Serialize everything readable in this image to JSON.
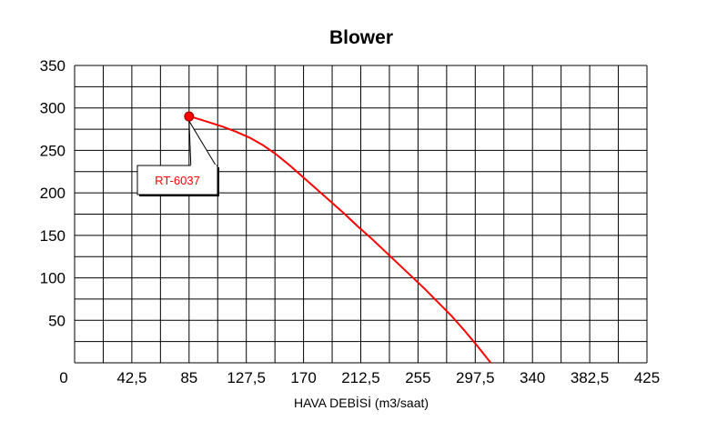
{
  "chart_data": {
    "type": "line",
    "title": "Blower",
    "xlabel": "HAVA DEBİSİ (m3/saat)",
    "ylabel": "",
    "xlim": [
      0,
      425
    ],
    "ylim": [
      0,
      350
    ],
    "x_ticks": [
      {
        "value": 0,
        "label": "0"
      },
      {
        "value": 42.5,
        "label": "42,5"
      },
      {
        "value": 85,
        "label": "85"
      },
      {
        "value": 127.5,
        "label": "127,5"
      },
      {
        "value": 170,
        "label": "170"
      },
      {
        "value": 212.5,
        "label": "212,5"
      },
      {
        "value": 255,
        "label": "255"
      },
      {
        "value": 297.5,
        "label": "297,5"
      },
      {
        "value": 340,
        "label": "340"
      },
      {
        "value": 382.5,
        "label": "382,5"
      },
      {
        "value": 425,
        "label": "425"
      }
    ],
    "y_ticks": [
      {
        "value": 50,
        "label": "50"
      },
      {
        "value": 100,
        "label": "100"
      },
      {
        "value": 150,
        "label": "150"
      },
      {
        "value": 200,
        "label": "200"
      },
      {
        "value": 250,
        "label": "250"
      },
      {
        "value": 300,
        "label": "300"
      },
      {
        "value": 350,
        "label": "350"
      }
    ],
    "grid": true,
    "series": [
      {
        "color": "#ff0000",
        "points": [
          [
            85,
            290
          ],
          [
            90,
            288
          ],
          [
            100,
            283
          ],
          [
            110,
            278
          ],
          [
            120,
            272
          ],
          [
            130,
            265
          ],
          [
            140,
            256
          ],
          [
            150,
            245
          ],
          [
            160,
            232
          ],
          [
            170,
            218
          ],
          [
            180,
            204
          ],
          [
            190,
            190
          ],
          [
            200,
            176
          ],
          [
            210,
            161
          ],
          [
            220,
            147
          ],
          [
            230,
            132
          ],
          [
            240,
            117
          ],
          [
            250,
            102
          ],
          [
            260,
            87
          ],
          [
            270,
            71
          ],
          [
            280,
            55
          ],
          [
            290,
            37
          ],
          [
            300,
            18
          ],
          [
            309,
            0
          ]
        ]
      }
    ],
    "marker": {
      "x": 85,
      "y": 290,
      "color": "#ff0000"
    },
    "annotation": {
      "text": "RT-6037",
      "x": 85,
      "y": 290,
      "color": "#ff0000"
    }
  }
}
